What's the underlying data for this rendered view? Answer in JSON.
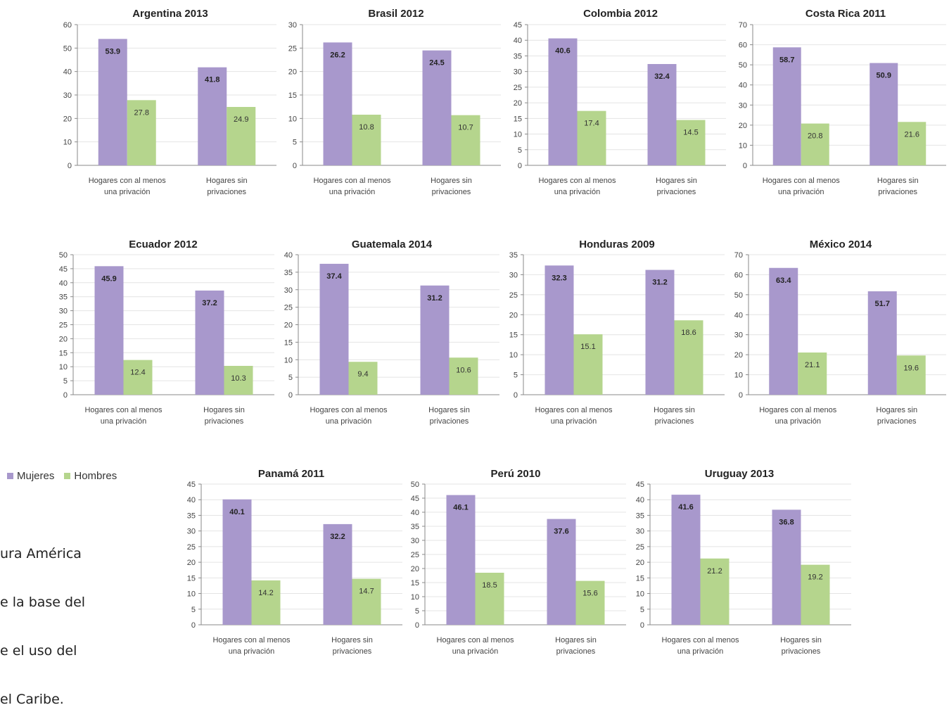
{
  "colors": {
    "mujeres": "#a898cc",
    "hombres": "#b5d58d",
    "axis": "#8a8a8a",
    "grid": "#e4e4e4"
  },
  "legend": {
    "mujeres": "Mujeres",
    "hombres": "Hombres"
  },
  "note_lines": [
    "ura América",
    "e la base del",
    "e el uso del",
    "el Caribe."
  ],
  "chart_data": [
    {
      "type": "bar",
      "title": "Argentina 2013",
      "categories": [
        "Hogares con al menos una privación",
        "Hogares sin privaciones"
      ],
      "ylim": [
        0,
        60
      ],
      "yticks": [
        0,
        10,
        20,
        30,
        40,
        50,
        60
      ],
      "series": [
        {
          "name": "Mujeres",
          "values": [
            53.9,
            41.8
          ]
        },
        {
          "name": "Hombres",
          "values": [
            27.8,
            24.9
          ]
        }
      ]
    },
    {
      "type": "bar",
      "title": "Brasil 2012",
      "categories": [
        "Hogares con al menos una privación",
        "Hogares sin privaciones"
      ],
      "ylim": [
        0,
        30
      ],
      "yticks": [
        0,
        5,
        10,
        15,
        20,
        25,
        30
      ],
      "series": [
        {
          "name": "Mujeres",
          "values": [
            26.2,
            24.5
          ]
        },
        {
          "name": "Hombres",
          "values": [
            10.8,
            10.7
          ]
        }
      ]
    },
    {
      "type": "bar",
      "title": "Colombia 2012",
      "categories": [
        "Hogares con al menos una privación",
        "Hogares sin privaciones"
      ],
      "ylim": [
        0,
        45
      ],
      "yticks": [
        0,
        5,
        10,
        15,
        20,
        25,
        30,
        35,
        40,
        45
      ],
      "series": [
        {
          "name": "Mujeres",
          "values": [
            40.6,
            32.4
          ]
        },
        {
          "name": "Hombres",
          "values": [
            17.4,
            14.5
          ]
        }
      ]
    },
    {
      "type": "bar",
      "title": "Costa Rica 2011",
      "categories": [
        "Hogares con al menos una privación",
        "Hogares sin privaciones"
      ],
      "ylim": [
        0,
        70
      ],
      "yticks": [
        0,
        10,
        20,
        30,
        40,
        50,
        60,
        70
      ],
      "series": [
        {
          "name": "Mujeres",
          "values": [
            58.7,
            50.9
          ]
        },
        {
          "name": "Hombres",
          "values": [
            20.8,
            21.6
          ]
        }
      ]
    },
    {
      "type": "bar",
      "title": "Ecuador 2012",
      "categories": [
        "Hogares con al menos una privación",
        "Hogares sin privaciones"
      ],
      "ylim": [
        0,
        50
      ],
      "yticks": [
        0,
        5,
        10,
        15,
        20,
        25,
        30,
        35,
        40,
        45,
        50
      ],
      "series": [
        {
          "name": "Mujeres",
          "values": [
            45.9,
            37.2
          ]
        },
        {
          "name": "Hombres",
          "values": [
            12.4,
            10.3
          ]
        }
      ]
    },
    {
      "type": "bar",
      "title": "Guatemala 2014",
      "categories": [
        "Hogares con al menos una privación",
        "Hogares sin privaciones"
      ],
      "ylim": [
        0,
        40
      ],
      "yticks": [
        0,
        5,
        10,
        15,
        20,
        25,
        30,
        35,
        40
      ],
      "series": [
        {
          "name": "Mujeres",
          "values": [
            37.4,
            31.2
          ]
        },
        {
          "name": "Hombres",
          "values": [
            9.4,
            10.6
          ]
        }
      ]
    },
    {
      "type": "bar",
      "title": "Honduras 2009",
      "categories": [
        "Hogares con al menos una privación",
        "Hogares sin privaciones"
      ],
      "ylim": [
        0,
        35
      ],
      "yticks": [
        0,
        5,
        10,
        15,
        20,
        25,
        30,
        35
      ],
      "series": [
        {
          "name": "Mujeres",
          "values": [
            32.3,
            31.2
          ]
        },
        {
          "name": "Hombres",
          "values": [
            15.1,
            18.6
          ]
        }
      ]
    },
    {
      "type": "bar",
      "title": "México 2014",
      "categories": [
        "Hogares con al menos una privación",
        "Hogares sin privaciones"
      ],
      "ylim": [
        0,
        70
      ],
      "yticks": [
        0,
        10,
        20,
        30,
        40,
        50,
        60,
        70
      ],
      "series": [
        {
          "name": "Mujeres",
          "values": [
            63.4,
            51.7
          ]
        },
        {
          "name": "Hombres",
          "values": [
            21.1,
            19.6
          ]
        }
      ]
    },
    {
      "type": "bar",
      "title": "Panamá 2011",
      "categories": [
        "Hogares con al menos una privación",
        "Hogares sin privaciones"
      ],
      "ylim": [
        0,
        45
      ],
      "yticks": [
        0,
        5,
        10,
        15,
        20,
        25,
        30,
        35,
        40,
        45
      ],
      "series": [
        {
          "name": "Mujeres",
          "values": [
            40.1,
            32.2
          ]
        },
        {
          "name": "Hombres",
          "values": [
            14.2,
            14.7
          ]
        }
      ]
    },
    {
      "type": "bar",
      "title": "Perú 2010",
      "categories": [
        "Hogares con al menos una privación",
        "Hogares sin privaciones"
      ],
      "ylim": [
        0,
        50
      ],
      "yticks": [
        0,
        5,
        10,
        15,
        20,
        25,
        30,
        35,
        40,
        45,
        50
      ],
      "series": [
        {
          "name": "Mujeres",
          "values": [
            46.1,
            37.6
          ]
        },
        {
          "name": "Hombres",
          "values": [
            18.5,
            15.6
          ]
        }
      ]
    },
    {
      "type": "bar",
      "title": "Uruguay 2013",
      "categories": [
        "Hogares con al menos una privación",
        "Hogares sin privaciones"
      ],
      "ylim": [
        0,
        45
      ],
      "yticks": [
        0,
        5,
        10,
        15,
        20,
        25,
        30,
        35,
        40,
        45
      ],
      "series": [
        {
          "name": "Mujeres",
          "values": [
            41.6,
            36.8
          ]
        },
        {
          "name": "Hombres",
          "values": [
            21.2,
            19.2
          ]
        }
      ]
    }
  ]
}
